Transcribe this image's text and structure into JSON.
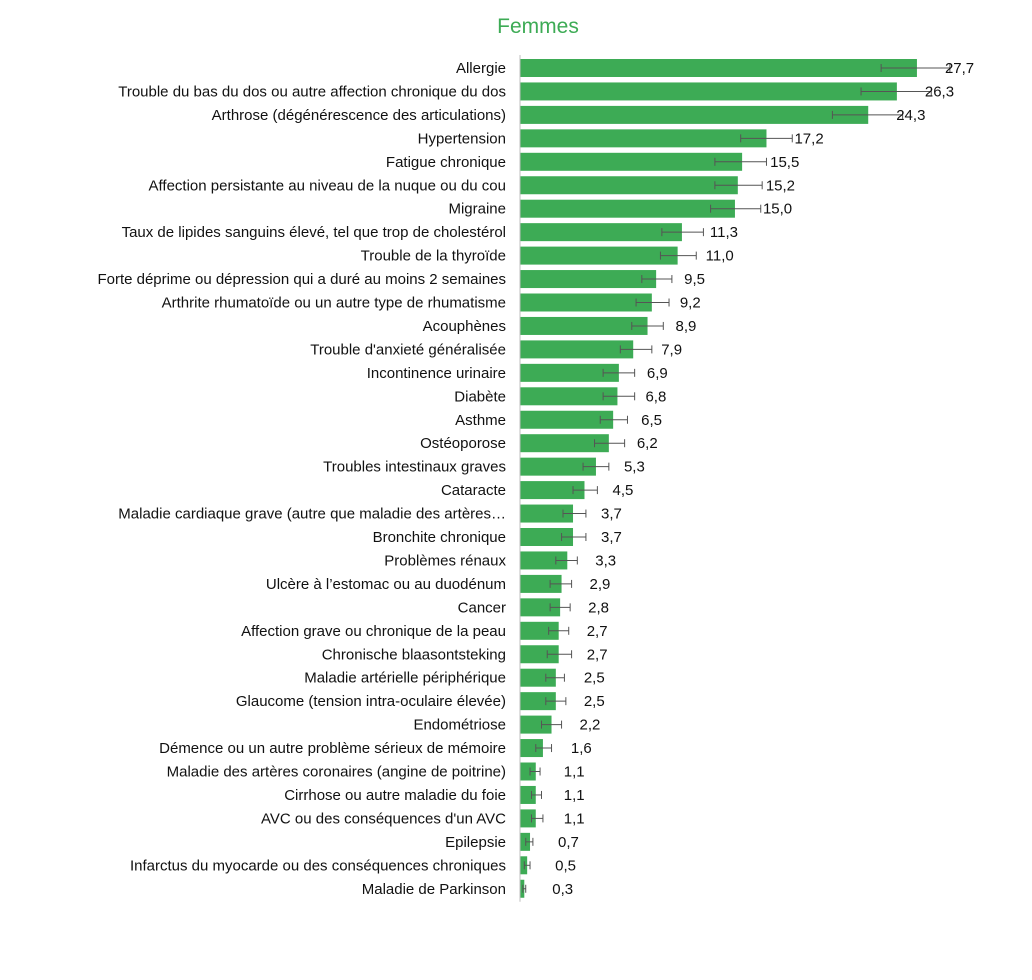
{
  "colors": {
    "bar": "#3dab55",
    "title": "#3dab55",
    "error_bar": "#555555"
  },
  "chart_data": {
    "type": "bar",
    "orientation": "horizontal",
    "title": "Femmes",
    "xlabel": "",
    "ylabel": "",
    "xlim": [
      0,
      30
    ],
    "grid": false,
    "legend": "none",
    "categories": [
      "Allergie",
      "Trouble du bas du dos ou autre affection chronique du dos",
      "Arthrose (dégénérescence des articulations)",
      "Hypertension",
      "Fatigue chronique",
      "Affection persistante au niveau de la nuque ou du cou",
      "Migraine",
      "Taux de lipides sanguins élevé, tel que trop de cholestérol",
      "Trouble de la thyroïde",
      "Forte déprime ou dépression qui a duré au moins 2 semaines",
      "Arthrite rhumatoïde ou un autre type de rhumatisme",
      "Acouphènes",
      "Trouble d'anxieté généralisée",
      "Incontinence urinaire",
      "Diabète",
      "Asthme",
      "Ostéoporose",
      "Troubles intestinaux graves",
      "Cataracte",
      "Maladie cardiaque grave (autre que maladie des artères…",
      "Bronchite chronique",
      "Problèmes rénaux",
      "Ulcère à l’estomac ou au duodénum",
      "Cancer",
      "Affection grave ou chronique de la peau",
      "Chronische blaasontsteking",
      "Maladie artérielle périphérique",
      "Glaucome (tension intra-oculaire élevée)",
      "Endométriose",
      "Démence ou un autre problème sérieux de mémoire",
      "Maladie des artères coronaires (angine de poitrine)",
      "Cirrhose ou autre maladie du foie",
      "AVC ou des conséquences d'un AVC",
      "Epilepsie",
      "Infarctus du myocarde ou des conséquences chroniques",
      "Maladie de Parkinson"
    ],
    "values": [
      27.7,
      26.3,
      24.3,
      17.2,
      15.5,
      15.2,
      15.0,
      11.3,
      11.0,
      9.5,
      9.2,
      8.9,
      7.9,
      6.9,
      6.8,
      6.5,
      6.2,
      5.3,
      4.5,
      3.7,
      3.7,
      3.3,
      2.9,
      2.8,
      2.7,
      2.7,
      2.5,
      2.5,
      2.2,
      1.6,
      1.1,
      1.1,
      1.1,
      0.7,
      0.5,
      0.3
    ],
    "value_labels": [
      "27,7",
      "26,3",
      "24,3",
      "17,2",
      "15,5",
      "15,2",
      "15,0",
      "11,3",
      "11,0",
      "9,5",
      "9,2",
      "8,9",
      "7,9",
      "6,9",
      "6,8",
      "6,5",
      "6,2",
      "5,3",
      "4,5",
      "3,7",
      "3,7",
      "3,3",
      "2,9",
      "2,8",
      "2,7",
      "2,7",
      "2,5",
      "2,5",
      "2,2",
      "1,6",
      "1,1",
      "1,1",
      "1,1",
      "0,7",
      "0,5",
      "0,3"
    ],
    "error_low": [
      25.2,
      23.8,
      21.8,
      15.4,
      13.6,
      13.6,
      13.3,
      9.9,
      9.8,
      8.5,
      8.1,
      7.8,
      7.0,
      5.8,
      5.8,
      5.6,
      5.2,
      4.4,
      3.7,
      3.0,
      2.9,
      2.5,
      2.1,
      2.1,
      2.0,
      1.9,
      1.8,
      1.8,
      1.5,
      1.1,
      0.7,
      0.8,
      0.8,
      0.4,
      0.3,
      0.2
    ],
    "error_high": [
      30.0,
      28.7,
      26.7,
      19.0,
      17.2,
      16.9,
      16.8,
      12.8,
      12.3,
      10.6,
      10.4,
      10.0,
      9.2,
      8.0,
      8.0,
      7.5,
      7.3,
      6.2,
      5.4,
      4.6,
      4.6,
      4.0,
      3.6,
      3.5,
      3.4,
      3.6,
      3.1,
      3.2,
      2.9,
      2.2,
      1.4,
      1.5,
      1.6,
      0.9,
      0.7,
      0.4
    ]
  }
}
